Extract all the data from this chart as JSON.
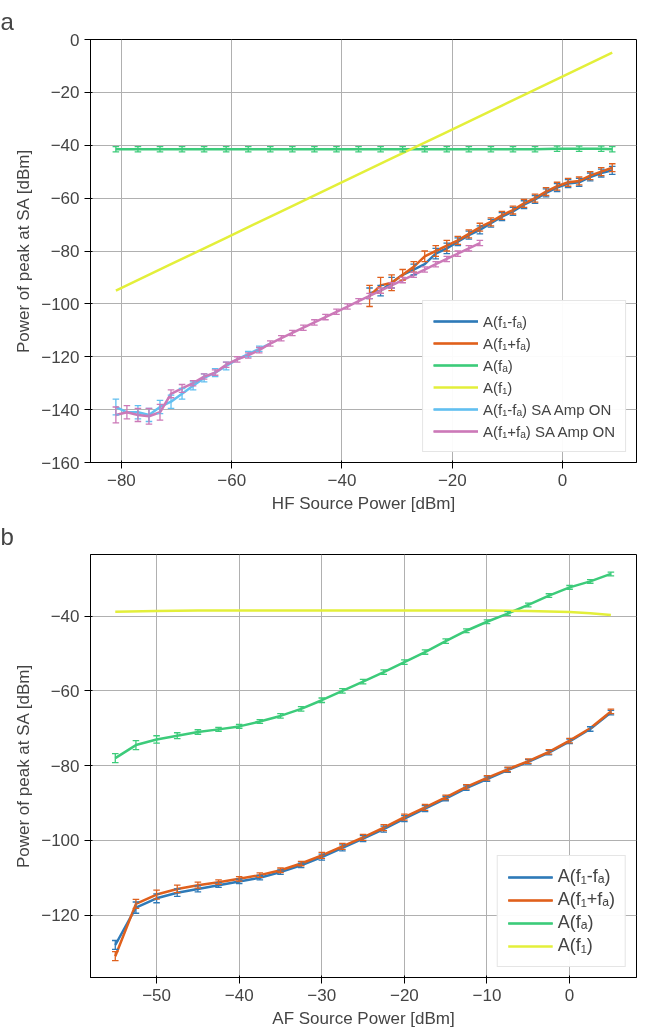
{
  "chart_data": [
    {
      "type": "line",
      "title": "a",
      "xlabel": "HF Source Power [dBm]",
      "ylabel": "Power of peak at SA [dBm]",
      "xlim": [
        -85.6,
        13.4
      ],
      "xticks": [
        -80,
        -60,
        -40,
        -20,
        0
      ],
      "ylim": [
        -160,
        0
      ],
      "yticks": [
        -160,
        -140,
        -120,
        -100,
        -80,
        -60,
        -40,
        -20,
        0
      ],
      "grid": true,
      "legend": "bottom right",
      "marker": "cross",
      "line_style": "solid",
      "series": [
        {
          "name": "A(f₁-fₐ)",
          "color": "#2e7ab8",
          "x": [
            -35,
            -33,
            -31,
            -29,
            -27,
            -25,
            -23,
            -21,
            -19,
            -17,
            -15,
            -13,
            -11,
            -9,
            -7,
            -5,
            -3,
            -1,
            1,
            3,
            5,
            7,
            9
          ],
          "values": [
            -96,
            -95,
            -92,
            -89,
            -87,
            -85,
            -81,
            -79,
            -76.5,
            -74,
            -72,
            -69.5,
            -67,
            -65,
            -62.5,
            -60.5,
            -58,
            -56,
            -54.5,
            -54,
            -52,
            -50.5,
            -49.5
          ],
          "errors": [
            2,
            2,
            2,
            null,
            2,
            null,
            2,
            2,
            1.5,
            1.5,
            1.5,
            1.5,
            1.5,
            1.5,
            1.5,
            1.5,
            1.5,
            1.5,
            1.5,
            1.5,
            1.5,
            1.5,
            1.5
          ]
        },
        {
          "name": "A(f₁+fₐ)",
          "color": "#e0601c",
          "x": [
            -35,
            -33,
            -31,
            -29,
            -27,
            -25,
            -23,
            -21,
            -19,
            -17,
            -15,
            -13,
            -11,
            -9,
            -7,
            -5,
            -3,
            -1,
            1,
            3,
            5,
            7,
            9
          ],
          "values": [
            -97,
            -93,
            -92,
            -89,
            -86,
            -82,
            -80,
            -78,
            -76,
            -73.5,
            -71,
            -69,
            -66.5,
            -64.5,
            -62,
            -60,
            -57.5,
            -55.5,
            -54,
            -53.5,
            -51.5,
            -50,
            -48.5
          ],
          "errors": [
            4,
            3,
            3,
            2,
            2,
            2,
            2,
            2,
            1.5,
            1.5,
            1.5,
            1.5,
            1.5,
            1.5,
            1.5,
            1.5,
            1.5,
            1.5,
            1.5,
            1.5,
            1.5,
            1.5,
            1.5
          ]
        },
        {
          "name": "A(fₐ)",
          "color": "#3ccb7a",
          "x": [
            -81,
            -77,
            -73,
            -69,
            -65,
            -61,
            -57,
            -53,
            -49,
            -45,
            -41,
            -37,
            -33,
            -29,
            -25,
            -21,
            -17,
            -13,
            -9,
            -5,
            -1,
            3,
            7,
            9
          ],
          "values": [
            -41.5,
            -41.5,
            -41.5,
            -41.5,
            -41.5,
            -41.5,
            -41.5,
            -41.5,
            -41.5,
            -41.5,
            -41.5,
            -41.5,
            -41.5,
            -41.5,
            -41.5,
            -41.5,
            -41.5,
            -41.5,
            -41.5,
            -41.5,
            -41.3,
            -41.3,
            -41.3,
            -41.5
          ],
          "errors": [
            1,
            1,
            1,
            1,
            1,
            1,
            1,
            1,
            1,
            1,
            1,
            1,
            1,
            1,
            1,
            1,
            1,
            1,
            1,
            1,
            1,
            1,
            1,
            1
          ]
        },
        {
          "name": "A(f₁)",
          "color": "#e3ef3a",
          "marker": "none",
          "x": [
            -81,
            -71,
            -61,
            -51,
            -41,
            -31,
            -21,
            -11,
            -1,
            9
          ],
          "values": [
            -95,
            -85,
            -75,
            -65,
            -55,
            -45,
            -35,
            -25,
            -15,
            -5
          ]
        },
        {
          "name": "A(f₁-fₐ) SA Amp ON",
          "color": "#62bff0",
          "x": [
            -81,
            -79,
            -77,
            -75,
            -73,
            -71,
            -69,
            -67,
            -65,
            -63,
            -61,
            -59,
            -57,
            -55,
            -53
          ],
          "values": [
            -139,
            -141,
            -141,
            -142,
            -139,
            -137,
            -134,
            -131,
            -128,
            -126,
            -123.5,
            -121,
            -119,
            -117,
            -115
          ],
          "errors": [
            3,
            null,
            2.5,
            2.5,
            2.5,
            2.5,
            2,
            1.5,
            1.5,
            1.5,
            1.5,
            null,
            1,
            1,
            null
          ]
        },
        {
          "name": "A(f₁+fₐ) SA Amp ON",
          "color": "#cc79b8",
          "x": [
            -81,
            -79,
            -77,
            -75,
            -73,
            -71,
            -69,
            -67,
            -65,
            -63,
            -61,
            -59,
            -57,
            -55,
            -53,
            -51,
            -49,
            -47,
            -45,
            -43,
            -41,
            -39,
            -37,
            -35,
            -33,
            -31,
            -29,
            -27,
            -25,
            -23,
            -21,
            -19,
            -17,
            -15
          ],
          "values": [
            -142,
            -141,
            -142,
            -142.5,
            -141,
            -134,
            -132,
            -130,
            -127.5,
            -126,
            -123,
            -121,
            -119.5,
            -117.5,
            -115,
            -113,
            -111,
            -109,
            -107,
            -105,
            -103,
            -101,
            -99,
            -97,
            -95,
            -93,
            -91,
            -89,
            -87,
            -85,
            -83,
            -81,
            -79,
            -77
          ],
          "errors": [
            3,
            2.5,
            2.5,
            3,
            3,
            1.5,
            1.5,
            1,
            1,
            1,
            1,
            1,
            1,
            1,
            1,
            1,
            1,
            1,
            1,
            1,
            1,
            1,
            1,
            1,
            1,
            1,
            1,
            1,
            1,
            1,
            1,
            1,
            1,
            1
          ]
        }
      ]
    },
    {
      "type": "line",
      "title": "b",
      "xlabel": "AF Source Power [dBm]",
      "ylabel": "Power of peak at SA [dBm]",
      "xlim": [
        -58,
        8.1
      ],
      "xticks": [
        -50,
        -40,
        -30,
        -20,
        -10,
        0
      ],
      "ylim": [
        -136.7,
        -23.5
      ],
      "yticks": [
        -120,
        -100,
        -80,
        -60,
        -40
      ],
      "grid": true,
      "legend": "bottom right",
      "marker": "cross",
      "line_style": "solid",
      "series": [
        {
          "name": "A(f₁-fₐ)",
          "color": "#2e7ab8",
          "x": [
            -55,
            -52.5,
            -50,
            -47.5,
            -45,
            -42.5,
            -40,
            -37.5,
            -35,
            -32.5,
            -30,
            -27.5,
            -25,
            -22.5,
            -20,
            -17.5,
            -15,
            -12.5,
            -10,
            -7.5,
            -5,
            -2.5,
            0,
            2.5,
            5
          ],
          "values": [
            -128,
            -118,
            -115.5,
            -114,
            -113,
            -112,
            -111,
            -110,
            -108.5,
            -106.7,
            -104.5,
            -102,
            -99.5,
            -97,
            -94.2,
            -91.5,
            -88.8,
            -86,
            -83.6,
            -81.2,
            -79,
            -76.5,
            -73.5,
            -70.2,
            -65.8
          ],
          "errors": [
            1.2,
            1.5,
            1.2,
            1,
            0.8,
            0.6,
            0.6,
            0.6,
            0.6,
            0.6,
            0.8,
            0.8,
            0.8,
            0.8,
            0.8,
            0.8,
            0.6,
            0.6,
            0.6,
            0.6,
            0.6,
            0.6,
            0.6,
            0.6,
            0.6
          ]
        },
        {
          "name": "A(f₁+fₐ)",
          "color": "#e0601c",
          "x": [
            -55,
            -52.5,
            -50,
            -47.5,
            -45,
            -42.5,
            -40,
            -37.5,
            -35,
            -32.5,
            -30,
            -27.5,
            -25,
            -22.5,
            -20,
            -17.5,
            -15,
            -12.5,
            -10,
            -7.5,
            -5,
            -2.5,
            0,
            2.5,
            5
          ],
          "values": [
            -131,
            -117,
            -114.5,
            -113,
            -112,
            -111.2,
            -110.3,
            -109.3,
            -108,
            -106.2,
            -104,
            -101.6,
            -99.2,
            -96.6,
            -93.8,
            -91.2,
            -88.5,
            -85.7,
            -83.3,
            -81,
            -78.8,
            -76.3,
            -73.3,
            -70,
            -65.5
          ],
          "errors": [
            1.2,
            1.2,
            1.2,
            1,
            0.8,
            0.6,
            0.6,
            0.6,
            0.6,
            0.6,
            0.8,
            0.8,
            0.8,
            0.8,
            0.8,
            0.8,
            0.6,
            0.6,
            0.6,
            0.6,
            0.6,
            0.6,
            0.6,
            null,
            0.6
          ]
        },
        {
          "name": "A(fₐ)",
          "color": "#3ccb7a",
          "x": [
            -55,
            -52.5,
            -50,
            -47.5,
            -45,
            -42.5,
            -40,
            -37.5,
            -35,
            -32.5,
            -30,
            -27.5,
            -25,
            -22.5,
            -20,
            -17.5,
            -15,
            -12.5,
            -10,
            -7.5,
            -5,
            -2.5,
            0,
            2.5,
            5
          ],
          "values": [
            -78,
            -74.5,
            -73,
            -72,
            -71,
            -70.3,
            -69.5,
            -68.2,
            -66.7,
            -64.8,
            -62.5,
            -60,
            -57.5,
            -55,
            -52.3,
            -49.6,
            -46.7,
            -43.9,
            -41.5,
            -39.3,
            -37,
            -34.5,
            -32.3,
            -30.7,
            -28.7
          ],
          "errors": [
            1.2,
            1.2,
            1,
            0.8,
            0.6,
            0.5,
            0.5,
            0.5,
            0.6,
            0.6,
            0.6,
            0.6,
            0.6,
            0.6,
            0.6,
            0.6,
            0.6,
            0.5,
            0.5,
            0.5,
            0.5,
            0.5,
            0.5,
            0.5,
            0.5
          ]
        },
        {
          "name": "A(f₁)",
          "color": "#e3ef3a",
          "marker": "none",
          "x": [
            -55,
            -50,
            -45,
            -40,
            -35,
            -30,
            -25,
            -20,
            -15,
            -10,
            -5,
            0,
            2.5,
            5
          ],
          "values": [
            -38.8,
            -38.6,
            -38.5,
            -38.5,
            -38.5,
            -38.5,
            -38.5,
            -38.5,
            -38.5,
            -38.5,
            -38.6,
            -38.9,
            -39.2,
            -39.7
          ]
        }
      ]
    }
  ]
}
